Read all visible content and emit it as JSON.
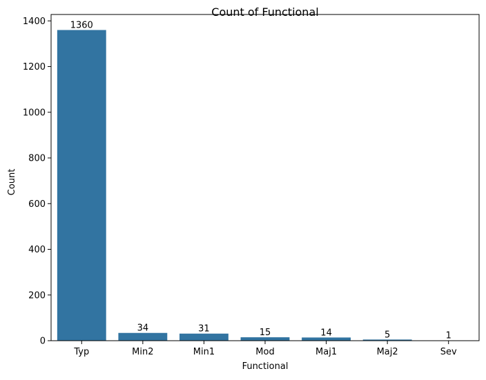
{
  "chart_data": {
    "type": "bar",
    "title": "Count of Functional",
    "xlabel": "Functional",
    "ylabel": "Count",
    "categories": [
      "Typ",
      "Min2",
      "Min1",
      "Mod",
      "Maj1",
      "Maj2",
      "Sev"
    ],
    "values": [
      1360,
      34,
      31,
      15,
      14,
      5,
      1
    ],
    "data_labels": [
      "1360",
      "34",
      "31",
      "15",
      "14",
      "5",
      "1"
    ],
    "ylim": [
      0,
      1428
    ],
    "yticks": [
      0,
      200,
      400,
      600,
      800,
      1000,
      1200,
      1400
    ],
    "ytick_labels": [
      "0",
      "200",
      "400",
      "600",
      "800",
      "1000",
      "1200",
      "1400"
    ],
    "grid": false,
    "bar_color": "#3274a1"
  }
}
